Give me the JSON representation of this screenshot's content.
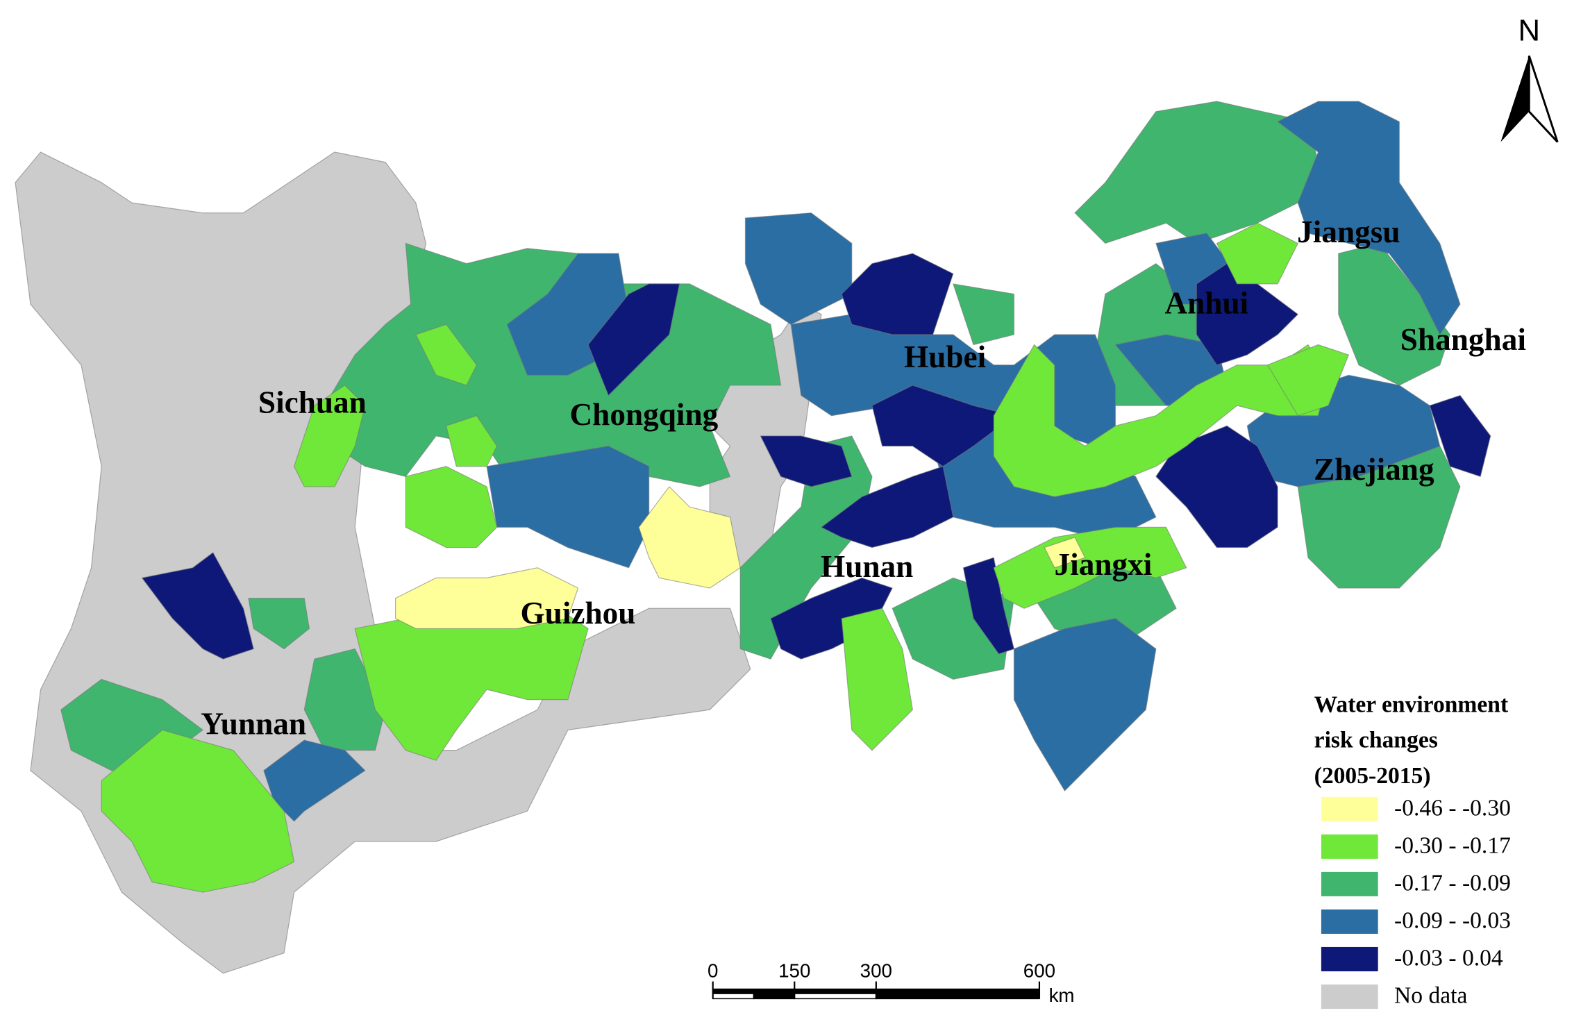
{
  "north": "N",
  "labels": [
    "Sichuan",
    "Chongqing",
    "Hubei",
    "Anhui",
    "Jiangsu",
    "Shanghai",
    "Zhejiang",
    "Hunan",
    "Jiangxi",
    "Guizhou",
    "Yunnan"
  ],
  "legend": {
    "title": [
      "Water environment",
      "risk changes",
      "(2005-2015)"
    ],
    "items": [
      {
        "label": "-0.46 - -0.30",
        "color": "#ffff99"
      },
      {
        "label": "-0.30 - -0.17",
        "color": "#6fe83a"
      },
      {
        "label": "-0.17 - -0.09",
        "color": "#3fb56e"
      },
      {
        "label": "-0.09 - -0.03",
        "color": "#2b6ea4"
      },
      {
        "label": "-0.03 - 0.04",
        "color": "#0d1878"
      },
      {
        "label": "No data",
        "color": "#cccccc"
      }
    ]
  },
  "scale_bar": {
    "ticks": [
      0,
      150,
      300,
      600
    ],
    "unit": "km"
  }
}
